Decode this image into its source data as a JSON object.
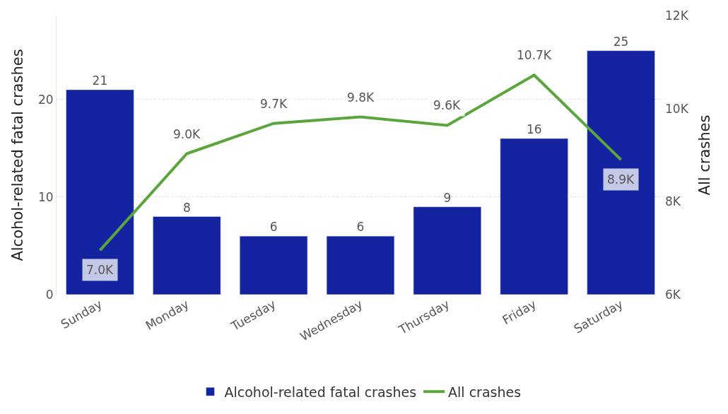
{
  "chart_data": {
    "type": "bar",
    "ylabel": "Alcohol-related fatal crashes",
    "y2label": "All crashes",
    "categories": [
      "Sunday",
      "Monday",
      "Tuesday",
      "Wednesday",
      "Thursday",
      "Friday",
      "Saturday"
    ],
    "series": [
      {
        "name": "Alcohol-related fatal crashes",
        "color": "#1424a0",
        "values": [
          21,
          8,
          6,
          6,
          9,
          16,
          25
        ],
        "value_labels": [
          "21",
          "8",
          "6",
          "6",
          "9",
          "16",
          "25"
        ]
      },
      {
        "name": "All crashes",
        "type": "line",
        "axis": "y2",
        "color": "#5aa63c",
        "values": [
          6950,
          9030,
          9680,
          9820,
          9640,
          10720,
          8900
        ],
        "value_labels": [
          "7.0K",
          "9.0K",
          "9.7K",
          "9.8K",
          "9.6K",
          "10.7K",
          "8.9K"
        ]
      }
    ],
    "ylim": [
      0,
      28.6
    ],
    "yticks": [
      0,
      10,
      20
    ],
    "y2lim": [
      6000,
      12000
    ],
    "y2ticks": [
      {
        "value": 6000,
        "label": "6K"
      },
      {
        "value": 8000,
        "label": "8K"
      },
      {
        "value": 10000,
        "label": "10K"
      },
      {
        "value": 12000,
        "label": "12K"
      }
    ],
    "grid": "y",
    "legend": "bottom",
    "marker": "none"
  }
}
